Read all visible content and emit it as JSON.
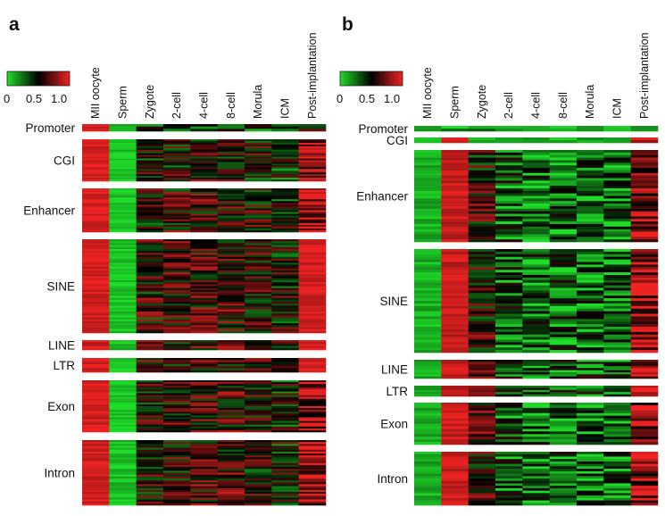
{
  "chart_data": [
    {
      "type": "heatmap",
      "panel_label": "a",
      "columns": [
        "MII oocyte",
        "Sperm",
        "Zygote",
        "2-cell",
        "4-cell",
        "8-cell",
        "Morula",
        "ICM",
        "Post-implantation"
      ],
      "colorbar": {
        "ticks": [
          "0",
          "0.5",
          "1.0"
        ],
        "range": [
          0,
          1
        ],
        "colors": [
          "#1fdc29",
          "#000000",
          "#ee2222"
        ]
      },
      "rows": [
        {
          "name": "Promoter",
          "n": 3,
          "col_means": [
            0.95,
            0.05,
            0.35,
            0.3,
            0.35,
            0.4,
            0.35,
            0.3,
            0.45
          ]
        },
        {
          "name": "CGI",
          "n": 24,
          "col_means": [
            0.95,
            0.05,
            0.48,
            0.5,
            0.55,
            0.55,
            0.5,
            0.4,
            0.75
          ]
        },
        {
          "name": "Enhancer",
          "n": 24,
          "col_means": [
            0.95,
            0.05,
            0.5,
            0.55,
            0.6,
            0.6,
            0.55,
            0.45,
            0.85
          ]
        },
        {
          "name": "SINE",
          "n": 48,
          "col_means": [
            0.95,
            0.05,
            0.55,
            0.58,
            0.6,
            0.62,
            0.58,
            0.5,
            0.95
          ]
        },
        {
          "name": "LINE",
          "n": 5,
          "col_means": [
            0.95,
            0.05,
            0.55,
            0.55,
            0.6,
            0.6,
            0.55,
            0.5,
            0.95
          ]
        },
        {
          "name": "LTR",
          "n": 7,
          "col_means": [
            0.95,
            0.05,
            0.55,
            0.55,
            0.6,
            0.6,
            0.55,
            0.5,
            0.95
          ]
        },
        {
          "name": "Exon",
          "n": 28,
          "col_means": [
            0.95,
            0.05,
            0.5,
            0.55,
            0.58,
            0.6,
            0.55,
            0.45,
            0.8
          ]
        },
        {
          "name": "Intron",
          "n": 34,
          "col_means": [
            0.95,
            0.05,
            0.52,
            0.55,
            0.6,
            0.6,
            0.55,
            0.48,
            0.85
          ]
        }
      ]
    },
    {
      "type": "heatmap",
      "panel_label": "b",
      "columns": [
        "MII oocyte",
        "Sperm",
        "Zygote",
        "2-cell",
        "4-cell",
        "8-cell",
        "Morula",
        "ICM",
        "Post-implantation"
      ],
      "colorbar": {
        "ticks": [
          "0",
          "0.5",
          "1.0"
        ],
        "range": [
          0,
          1
        ],
        "colors": [
          "#1fdc29",
          "#000000",
          "#ee2222"
        ]
      },
      "rows": [
        {
          "name": "Promoter",
          "n": 2,
          "col_means": [
            0.1,
            0.2,
            0.25,
            0.1,
            0.1,
            0.1,
            0.1,
            0.1,
            0.4
          ]
        },
        {
          "name": "CGI",
          "n": 2,
          "col_means": [
            0.1,
            0.9,
            0.35,
            0.1,
            0.1,
            0.1,
            0.1,
            0.1,
            0.7
          ]
        },
        {
          "name": "Enhancer",
          "n": 36,
          "col_means": [
            0.1,
            0.92,
            0.55,
            0.3,
            0.25,
            0.25,
            0.25,
            0.25,
            0.75
          ]
        },
        {
          "name": "SINE",
          "n": 40,
          "col_means": [
            0.1,
            0.92,
            0.55,
            0.3,
            0.25,
            0.28,
            0.25,
            0.25,
            0.85
          ]
        },
        {
          "name": "LINE",
          "n": 9,
          "col_means": [
            0.1,
            0.92,
            0.55,
            0.35,
            0.3,
            0.3,
            0.3,
            0.3,
            0.85
          ]
        },
        {
          "name": "LTR",
          "n": 5,
          "col_means": [
            0.1,
            0.92,
            0.6,
            0.35,
            0.3,
            0.3,
            0.3,
            0.3,
            0.85
          ]
        },
        {
          "name": "Exon",
          "n": 16,
          "col_means": [
            0.1,
            0.92,
            0.55,
            0.3,
            0.25,
            0.28,
            0.25,
            0.25,
            0.8
          ]
        },
        {
          "name": "Intron",
          "n": 22,
          "col_means": [
            0.1,
            0.92,
            0.55,
            0.3,
            0.25,
            0.28,
            0.25,
            0.25,
            0.8
          ]
        }
      ]
    }
  ]
}
